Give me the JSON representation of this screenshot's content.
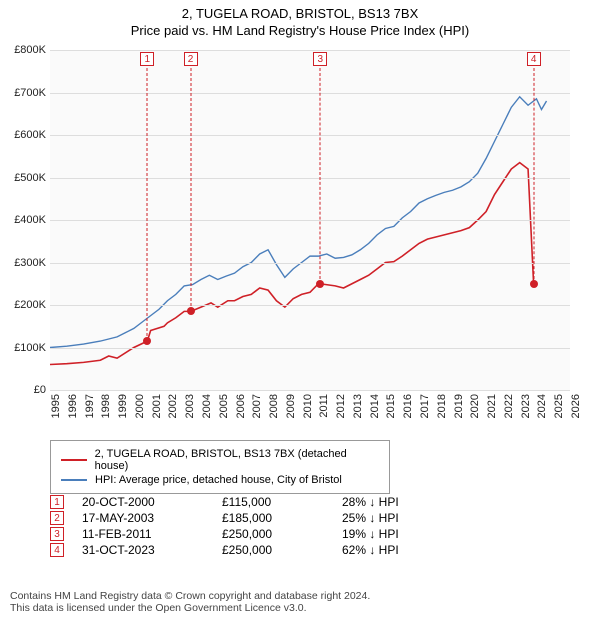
{
  "title": {
    "line1": "2, TUGELA ROAD, BRISTOL, BS13 7BX",
    "line2": "Price paid vs. HM Land Registry's House Price Index (HPI)"
  },
  "chart": {
    "type": "line",
    "background_color": "#fafafa",
    "shade_color": "#eef2f7",
    "xlim": [
      1995,
      2026
    ],
    "ylim": [
      0,
      800000
    ],
    "ytick_step": 100000,
    "ylabels": [
      "£0",
      "£100K",
      "£200K",
      "£300K",
      "£400K",
      "£500K",
      "£600K",
      "£700K",
      "£800K"
    ],
    "xticks": [
      1995,
      1996,
      1997,
      1998,
      1999,
      2000,
      2001,
      2002,
      2003,
      2004,
      2005,
      2006,
      2007,
      2008,
      2009,
      2010,
      2011,
      2012,
      2013,
      2014,
      2015,
      2016,
      2017,
      2018,
      2019,
      2020,
      2021,
      2022,
      2023,
      2024,
      2025,
      2026
    ],
    "grid_color": "#dddddd",
    "label_fontsize": 11,
    "series": {
      "property": {
        "label": "2, TUGELA ROAD, BRISTOL, BS13 7BX (detached house)",
        "color": "#cf2027",
        "line_width": 1.6,
        "data": [
          [
            1995,
            60000
          ],
          [
            1996,
            62000
          ],
          [
            1997,
            65000
          ],
          [
            1998,
            70000
          ],
          [
            1998.5,
            80000
          ],
          [
            1999,
            75000
          ],
          [
            2000,
            100000
          ],
          [
            2000.8,
            115000
          ],
          [
            2001,
            140000
          ],
          [
            2001.8,
            150000
          ],
          [
            2002,
            158000
          ],
          [
            2002.5,
            170000
          ],
          [
            2003,
            185000
          ],
          [
            2003.4,
            185000
          ],
          [
            2004,
            195000
          ],
          [
            2004.6,
            205000
          ],
          [
            2005,
            195000
          ],
          [
            2005.6,
            210000
          ],
          [
            2006,
            210000
          ],
          [
            2006.5,
            220000
          ],
          [
            2007,
            225000
          ],
          [
            2007.5,
            240000
          ],
          [
            2008,
            235000
          ],
          [
            2008.5,
            210000
          ],
          [
            2009,
            195000
          ],
          [
            2009.5,
            215000
          ],
          [
            2010,
            225000
          ],
          [
            2010.5,
            230000
          ],
          [
            2011,
            250000
          ],
          [
            2011.1,
            250000
          ],
          [
            2012,
            245000
          ],
          [
            2012.5,
            240000
          ],
          [
            2013,
            250000
          ],
          [
            2013.5,
            260000
          ],
          [
            2014,
            270000
          ],
          [
            2014.5,
            285000
          ],
          [
            2015,
            300000
          ],
          [
            2015.5,
            302000
          ],
          [
            2016,
            315000
          ],
          [
            2016.5,
            330000
          ],
          [
            2017,
            345000
          ],
          [
            2017.5,
            355000
          ],
          [
            2018,
            360000
          ],
          [
            2018.5,
            365000
          ],
          [
            2019,
            370000
          ],
          [
            2019.5,
            375000
          ],
          [
            2020,
            382000
          ],
          [
            2020.5,
            400000
          ],
          [
            2021,
            420000
          ],
          [
            2021.5,
            460000
          ],
          [
            2022,
            490000
          ],
          [
            2022.5,
            520000
          ],
          [
            2023,
            535000
          ],
          [
            2023.5,
            520000
          ],
          [
            2023.83,
            250000
          ],
          [
            2024,
            250000
          ]
        ]
      },
      "hpi": {
        "label": "HPI: Average price, detached house, City of Bristol",
        "color": "#4a7ebb",
        "line_width": 1.4,
        "data": [
          [
            1995,
            100000
          ],
          [
            1996,
            103000
          ],
          [
            1997,
            108000
          ],
          [
            1998,
            115000
          ],
          [
            1998.5,
            120000
          ],
          [
            1999,
            125000
          ],
          [
            1999.5,
            135000
          ],
          [
            2000,
            145000
          ],
          [
            2000.5,
            160000
          ],
          [
            2001,
            175000
          ],
          [
            2001.5,
            190000
          ],
          [
            2002,
            210000
          ],
          [
            2002.5,
            225000
          ],
          [
            2003,
            245000
          ],
          [
            2003.5,
            248000
          ],
          [
            2004,
            260000
          ],
          [
            2004.5,
            270000
          ],
          [
            2005,
            260000
          ],
          [
            2005.5,
            268000
          ],
          [
            2006,
            275000
          ],
          [
            2006.5,
            290000
          ],
          [
            2007,
            300000
          ],
          [
            2007.5,
            320000
          ],
          [
            2008,
            330000
          ],
          [
            2008.5,
            295000
          ],
          [
            2009,
            265000
          ],
          [
            2009.5,
            285000
          ],
          [
            2010,
            300000
          ],
          [
            2010.5,
            315000
          ],
          [
            2011,
            315000
          ],
          [
            2011.5,
            320000
          ],
          [
            2012,
            310000
          ],
          [
            2012.5,
            312000
          ],
          [
            2013,
            318000
          ],
          [
            2013.5,
            330000
          ],
          [
            2014,
            345000
          ],
          [
            2014.5,
            365000
          ],
          [
            2015,
            380000
          ],
          [
            2015.5,
            385000
          ],
          [
            2016,
            405000
          ],
          [
            2016.5,
            420000
          ],
          [
            2017,
            440000
          ],
          [
            2017.5,
            450000
          ],
          [
            2018,
            458000
          ],
          [
            2018.5,
            465000
          ],
          [
            2019,
            470000
          ],
          [
            2019.5,
            478000
          ],
          [
            2020,
            490000
          ],
          [
            2020.5,
            510000
          ],
          [
            2021,
            545000
          ],
          [
            2021.5,
            585000
          ],
          [
            2022,
            625000
          ],
          [
            2022.5,
            665000
          ],
          [
            2023,
            690000
          ],
          [
            2023.5,
            670000
          ],
          [
            2024,
            685000
          ],
          [
            2024.3,
            660000
          ],
          [
            2024.6,
            680000
          ]
        ]
      }
    },
    "markers": [
      {
        "idx": "1",
        "x": 2000.8,
        "y": 115000
      },
      {
        "idx": "2",
        "x": 2003.38,
        "y": 185000
      },
      {
        "idx": "3",
        "x": 2011.11,
        "y": 250000
      },
      {
        "idx": "4",
        "x": 2023.83,
        "y": 250000
      }
    ],
    "marker_color": "#cf2027"
  },
  "legend": {
    "border_color": "#999999",
    "fontsize": 11,
    "items": [
      {
        "key": "property"
      },
      {
        "key": "hpi"
      }
    ]
  },
  "transactions": {
    "rows": [
      {
        "idx": "1",
        "date": "20-OCT-2000",
        "price": "£115,000",
        "delta": "28% ↓ HPI"
      },
      {
        "idx": "2",
        "date": "17-MAY-2003",
        "price": "£185,000",
        "delta": "25% ↓ HPI"
      },
      {
        "idx": "3",
        "date": "11-FEB-2011",
        "price": "£250,000",
        "delta": "19% ↓ HPI"
      },
      {
        "idx": "4",
        "date": "31-OCT-2023",
        "price": "£250,000",
        "delta": "62% ↓ HPI"
      }
    ]
  },
  "footer": {
    "line1": "Contains HM Land Registry data © Crown copyright and database right 2024.",
    "line2": "This data is licensed under the Open Government Licence v3.0."
  }
}
